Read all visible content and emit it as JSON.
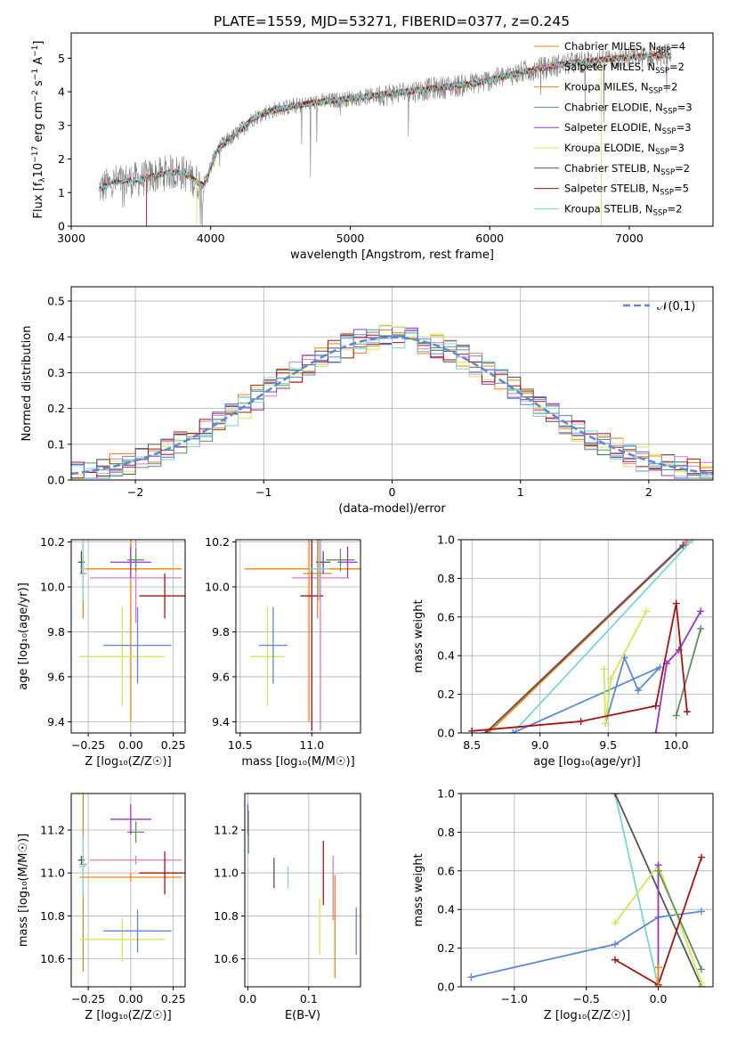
{
  "colors": {
    "chab_miles": "#ff7f00",
    "salp_miles": "#e377c2",
    "krou_miles": "#d68a2c",
    "chab_elodie": "#5f8f5f",
    "salp_elodie": "#9933cc",
    "krou_elodie": "#d9e54f",
    "chab_stelib": "#555555",
    "salp_stelib": "#aa1111",
    "krou_stelib": "#77d7d7",
    "data": "#808080",
    "blue": "#5b8ad8",
    "normal": "#5b8ad8"
  },
  "chart_data": [
    {
      "id": "spectrum",
      "type": "line",
      "title": "PLATE=1559, MJD=53271, FIBERID=0377, z=0.245",
      "xlabel": "wavelength [Angstrom, rest frame]",
      "ylabel_parts": [
        "Flux [f",
        "λ",
        "10",
        "−17",
        " erg cm",
        "−2",
        " s",
        "−1",
        " A",
        "−1",
        "]"
      ],
      "xlim": [
        3000,
        7600
      ],
      "ylim": [
        0,
        5.75
      ],
      "xticks": [
        "3000",
        "4000",
        "5000",
        "6000",
        "7000"
      ],
      "yticks": [
        "0",
        "1",
        "2",
        "3",
        "4",
        "5"
      ],
      "legend_loc": "upper right",
      "legend": [
        {
          "text": "Chabrier MILES, N",
          "sub": "SSP",
          "tail": "=4",
          "color": "chab_miles"
        },
        {
          "text": "Salpeter MILES, N",
          "sub": "SSP",
          "tail": "=2",
          "color": "salp_miles"
        },
        {
          "text": "Kroupa MILES, N",
          "sub": "SSP",
          "tail": "=2",
          "color": "krou_miles"
        },
        {
          "text": "Chabrier ELODIE, N",
          "sub": "SSP",
          "tail": "=3",
          "color": "chab_elodie"
        },
        {
          "text": "Salpeter ELODIE, N",
          "sub": "SSP",
          "tail": "=3",
          "color": "salp_elodie"
        },
        {
          "text": "Kroupa ELODIE, N",
          "sub": "SSP",
          "tail": "=3",
          "color": "krou_elodie"
        },
        {
          "text": "Chabrier STELIB, N",
          "sub": "SSP",
          "tail": "=2",
          "color": "chab_stelib"
        },
        {
          "text": "Salpeter STELIB, N",
          "sub": "SSP",
          "tail": "=5",
          "color": "salp_stelib"
        },
        {
          "text": "Kroupa STELIB, N",
          "sub": "SSP",
          "tail": "=2",
          "color": "krou_stelib"
        }
      ],
      "continuum": [
        [
          3200,
          1.1
        ],
        [
          3300,
          1.3
        ],
        [
          3500,
          1.4
        ],
        [
          3700,
          1.6
        ],
        [
          3800,
          1.6
        ],
        [
          3950,
          1.2
        ],
        [
          4050,
          2.3
        ],
        [
          4200,
          2.8
        ],
        [
          4300,
          3.2
        ],
        [
          4400,
          3.4
        ],
        [
          4500,
          3.5
        ],
        [
          4700,
          3.65
        ],
        [
          4900,
          3.75
        ],
        [
          5100,
          3.85
        ],
        [
          5300,
          3.95
        ],
        [
          5500,
          4.05
        ],
        [
          5700,
          4.15
        ],
        [
          5900,
          4.25
        ],
        [
          6100,
          4.45
        ],
        [
          6300,
          4.65
        ],
        [
          6500,
          4.8
        ],
        [
          6700,
          4.9
        ],
        [
          6900,
          5.0
        ],
        [
          7100,
          5.05
        ],
        [
          7300,
          5.1
        ]
      ]
    },
    {
      "id": "residuals",
      "type": "histogram",
      "xlabel": "(data-model)/error",
      "ylabel": "Normed distribution",
      "xlim": [
        -2.5,
        2.5
      ],
      "ylim": [
        0,
        0.54
      ],
      "xticks": [
        "−2",
        "−1",
        "0",
        "1",
        "2"
      ],
      "yticks": [
        "0.0",
        "0.1",
        "0.2",
        "0.3",
        "0.4",
        "0.5"
      ],
      "legend": "𝒩(0,1)",
      "bin_width": 0.1
    },
    {
      "id": "age_vs_Z",
      "type": "errorbar",
      "xlabel": "Z [log₁₀(Z/Z☉)]",
      "ylabel": "age [log₁₀(age/yr)]",
      "xlim": [
        -0.35,
        0.32
      ],
      "ylim": [
        9.35,
        10.21
      ],
      "xticks": [
        "−0.25",
        "0.00",
        "0.25"
      ],
      "xtick_values": [
        -0.25,
        0,
        0.25
      ],
      "yticks": [
        "9.4",
        "9.6",
        "9.8",
        "10.0",
        "10.2"
      ],
      "ytick_values": [
        9.4,
        9.6,
        9.8,
        10.0,
        10.2
      ],
      "points": [
        {
          "c": "chab_miles",
          "x": 0.0,
          "xe": 0.3,
          "y": 10.08,
          "ye": 0.68
        },
        {
          "c": "salp_miles",
          "x": 0.03,
          "xe": 0.27,
          "y": 10.04,
          "ye": 0.2
        },
        {
          "c": "krou_miles",
          "x": -0.28,
          "xe": 0.02,
          "y": 10.06,
          "ye": 0.2
        },
        {
          "c": "chab_elodie",
          "x": 0.03,
          "xe": 0.05,
          "y": 10.12,
          "ye": 0.05
        },
        {
          "c": "salp_elodie",
          "x": 0.0,
          "xe": 0.12,
          "y": 10.11,
          "ye": 0.07
        },
        {
          "c": "krou_elodie",
          "x": -0.05,
          "xe": 0.25,
          "y": 9.69,
          "ye": 0.22
        },
        {
          "c": "chab_stelib",
          "x": -0.29,
          "xe": 0.02,
          "y": 10.11,
          "ye": 0.05
        },
        {
          "c": "salp_stelib",
          "x": 0.2,
          "xe": 0.15,
          "y": 9.96,
          "ye": 0.1
        },
        {
          "c": "krou_stelib",
          "x": -0.28,
          "xe": 0.02,
          "y": 10.08,
          "ye": 0.14
        },
        {
          "c": "blue",
          "x": 0.04,
          "xe": 0.2,
          "y": 9.74,
          "ye": 0.17
        }
      ]
    },
    {
      "id": "age_vs_mass",
      "type": "errorbar",
      "xlabel": "mass [log₁₀(M/M☉)]",
      "xlim": [
        10.47,
        11.34
      ],
      "ylim": [
        9.35,
        10.21
      ],
      "xticks": [
        "10.5",
        "11.0"
      ],
      "xtick_values": [
        10.5,
        11.0
      ],
      "yticks": [
        "9.4",
        "9.6",
        "9.8",
        "10.0",
        "10.2"
      ],
      "ytick_values": [
        9.4,
        9.6,
        9.8,
        10.0,
        10.2
      ],
      "points": [
        {
          "c": "chab_miles",
          "x": 10.98,
          "xe": 0.45,
          "y": 10.08,
          "ye": 0.68
        },
        {
          "c": "salp_miles",
          "x": 11.06,
          "xe": 0.2,
          "y": 10.04,
          "ye": 0.68
        },
        {
          "c": "krou_miles",
          "x": 11.04,
          "xe": 0.1,
          "y": 10.06,
          "ye": 0.2
        },
        {
          "c": "chab_elodie",
          "x": 11.2,
          "xe": 0.1,
          "y": 10.12,
          "ye": 0.05
        },
        {
          "c": "salp_elodie",
          "x": 11.25,
          "xe": 0.07,
          "y": 10.11,
          "ye": 0.07
        },
        {
          "c": "krou_elodie",
          "x": 10.69,
          "xe": 0.12,
          "y": 9.69,
          "ye": 0.22
        },
        {
          "c": "chab_stelib",
          "x": 11.08,
          "xe": 0.05,
          "y": 10.11,
          "ye": 0.05
        },
        {
          "c": "salp_stelib",
          "x": 11.0,
          "xe": 0.08,
          "y": 9.96,
          "ye": 0.6
        },
        {
          "c": "krou_stelib",
          "x": 11.05,
          "xe": 0.07,
          "y": 10.08,
          "ye": 0.14
        },
        {
          "c": "blue",
          "x": 10.73,
          "xe": 0.1,
          "y": 9.74,
          "ye": 0.17
        }
      ]
    },
    {
      "id": "weight_vs_age",
      "type": "line",
      "xlabel": "age [log₁₀(age/yr)]",
      "ylabel": "mass weight",
      "xlim": [
        8.42,
        10.27
      ],
      "ylim": [
        0,
        1
      ],
      "xticks": [
        "8.5",
        "9.0",
        "9.5",
        "10.0"
      ],
      "xtick_values": [
        8.5,
        9.0,
        9.5,
        10.0
      ],
      "yticks": [
        "0.0",
        "0.2",
        "0.4",
        "0.6",
        "0.8",
        "1.0"
      ],
      "ytick_values": [
        0,
        0.2,
        0.4,
        0.6,
        0.8,
        1.0
      ],
      "series": [
        {
          "c": "chab_miles",
          "points": [
            [
              8.62,
              0
            ],
            [
              10.08,
              0.99
            ]
          ]
        },
        {
          "c": "salp_miles",
          "points": [
            [
              8.6,
              0
            ],
            [
              10.07,
              0.99
            ]
          ]
        },
        {
          "c": "chab_stelib",
          "points": [
            [
              8.6,
              0
            ],
            [
              10.05,
              0.97
            ]
          ]
        },
        {
          "c": "krou_stelib",
          "points": [
            [
              8.8,
              0
            ],
            [
              10.12,
              1.0
            ]
          ]
        },
        {
          "c": "blue",
          "points": [
            [
              8.8,
              0
            ],
            [
              9.88,
              0.34
            ],
            [
              9.72,
              0.22
            ],
            [
              9.62,
              0.39
            ],
            [
              9.48,
              0.05
            ]
          ]
        },
        {
          "c": "krou_elodie",
          "points": [
            [
              9.47,
              0.33
            ],
            [
              9.48,
              0.05
            ],
            [
              9.52,
              0.28
            ],
            [
              9.78,
              0.63
            ]
          ]
        },
        {
          "c": "salp_elodie",
          "points": [
            [
              9.85,
              0.0
            ],
            [
              9.93,
              0.36
            ],
            [
              10.02,
              0.43
            ],
            [
              10.18,
              0.63
            ]
          ]
        },
        {
          "c": "chab_elodie",
          "points": [
            [
              10.0,
              0.09
            ],
            [
              10.18,
              0.54
            ]
          ]
        },
        {
          "c": "salp_stelib",
          "points": [
            [
              8.5,
              0.01
            ],
            [
              9.3,
              0.06
            ],
            [
              9.85,
              0.14
            ],
            [
              10.0,
              0.67
            ],
            [
              10.08,
              0.11
            ]
          ]
        }
      ]
    },
    {
      "id": "mass_vs_Z",
      "type": "errorbar",
      "xlabel": "Z [log₁₀(Z/Z☉)]",
      "ylabel": "mass [log₁₀(M/M☉)]",
      "xlim": [
        -0.35,
        0.32
      ],
      "ylim": [
        10.47,
        11.37
      ],
      "xticks": [
        "−0.25",
        "0.00",
        "0.25"
      ],
      "xtick_values": [
        -0.25,
        0,
        0.25
      ],
      "yticks": [
        "10.6",
        "10.8",
        "11.0",
        "11.2"
      ],
      "ytick_values": [
        10.6,
        10.8,
        11.0,
        11.2
      ],
      "points": [
        {
          "c": "chab_miles",
          "x": 0.0,
          "xe": 0.3,
          "y": 10.98,
          "ye": 0.02
        },
        {
          "c": "salp_miles",
          "x": 0.03,
          "xe": 0.27,
          "y": 11.06,
          "ye": 0.02
        },
        {
          "c": "krou_miles",
          "x": -0.28,
          "xe": 0.02,
          "y": 11.04,
          "ye": 0.5
        },
        {
          "c": "chab_elodie",
          "x": 0.03,
          "xe": 0.05,
          "y": 11.19,
          "ye": 0.05
        },
        {
          "c": "salp_elodie",
          "x": 0.0,
          "xe": 0.12,
          "y": 11.25,
          "ye": 0.07
        },
        {
          "c": "krou_elodie",
          "x": -0.05,
          "xe": 0.25,
          "y": 10.69,
          "ye": 0.1
        },
        {
          "c": "chab_stelib",
          "x": -0.29,
          "xe": 0.02,
          "y": 11.06,
          "ye": 0.02
        },
        {
          "c": "salp_stelib",
          "x": 0.2,
          "xe": 0.15,
          "y": 11.0,
          "ye": 0.1
        },
        {
          "c": "krou_stelib",
          "x": -0.28,
          "xe": 0.02,
          "y": 11.03,
          "ye": 0.14
        },
        {
          "c": "blue",
          "x": 0.04,
          "xe": 0.2,
          "y": 10.73,
          "ye": 0.1
        }
      ]
    },
    {
      "id": "mass_vs_ebv",
      "type": "errorbar",
      "xlabel": "E(B-V)",
      "xlim": [
        -0.005,
        0.185
      ],
      "ylim": [
        10.47,
        11.37
      ],
      "xticks": [
        "0.0",
        "0.1"
      ],
      "xtick_values": [
        0,
        0.1
      ],
      "yticks": [
        "10.6",
        "10.8",
        "11.0",
        "11.2"
      ],
      "ytick_values": [
        10.6,
        10.8,
        11.0,
        11.2
      ],
      "points": [
        {
          "c": "salp_elodie",
          "x": 0.0,
          "xe": 0,
          "y": 11.25,
          "ye": 0.07
        },
        {
          "c": "chab_elodie",
          "x": 0.001,
          "xe": 0,
          "y": 11.19,
          "ye": 0.1
        },
        {
          "c": "chab_stelib",
          "x": 0.043,
          "xe": 0,
          "y": 11.0,
          "ye": 0.07
        },
        {
          "c": "krou_stelib",
          "x": 0.066,
          "xe": 0,
          "y": 10.98,
          "ye": 0.05
        },
        {
          "c": "krou_elodie",
          "x": 0.118,
          "xe": 0,
          "y": 10.75,
          "ye": 0.13
        },
        {
          "c": "salp_stelib",
          "x": 0.124,
          "xe": 0,
          "y": 11.0,
          "ye": 0.15
        },
        {
          "c": "salp_miles",
          "x": 0.14,
          "xe": 0,
          "y": 10.93,
          "ye": 0.15
        },
        {
          "c": "chab_miles",
          "x": 0.143,
          "xe": 0,
          "y": 10.75,
          "ye": 0.24
        },
        {
          "c": "blue",
          "x": 0.178,
          "xe": 0,
          "y": 10.73,
          "ye": 0.11
        }
      ]
    },
    {
      "id": "weight_vs_Z",
      "type": "line",
      "xlabel": "Z [log₁₀(Z/Z☉)]",
      "ylabel": "mass weight",
      "xlim": [
        -1.37,
        0.38
      ],
      "ylim": [
        0,
        1
      ],
      "xticks": [
        "−1.0",
        "−0.5",
        "0.0"
      ],
      "xtick_values": [
        -1.0,
        -0.5,
        0.0
      ],
      "yticks": [
        "0.0",
        "0.2",
        "0.4",
        "0.6",
        "0.8",
        "1.0"
      ],
      "ytick_values": [
        0,
        0.2,
        0.4,
        0.6,
        0.8,
        1.0
      ],
      "series": [
        {
          "c": "krou_stelib",
          "points": [
            [
              -0.3,
              1.0
            ],
            [
              -0.3,
              1.0
            ],
            [
              0.0,
              0.0
            ]
          ]
        },
        {
          "c": "chab_stelib",
          "points": [
            [
              -0.3,
              1.0
            ],
            [
              0.3,
              0.0
            ]
          ]
        },
        {
          "c": "blue",
          "points": [
            [
              -1.3,
              0.05
            ],
            [
              -0.3,
              0.22
            ],
            [
              0.0,
              0.36
            ],
            [
              0.3,
              0.39
            ]
          ]
        },
        {
          "c": "krou_elodie",
          "points": [
            [
              -0.3,
              0.33
            ],
            [
              0.0,
              0.63
            ],
            [
              0.3,
              0.02
            ]
          ]
        },
        {
          "c": "salp_elodie",
          "points": [
            [
              0.0,
              0.63
            ],
            [
              0.0,
              0.0
            ]
          ]
        },
        {
          "c": "chab_elodie",
          "points": [
            [
              0.0,
              0.6
            ],
            [
              0.3,
              0.09
            ]
          ]
        },
        {
          "c": "salp_stelib",
          "points": [
            [
              -0.3,
              0.14
            ],
            [
              0.0,
              0.01
            ],
            [
              0.3,
              0.67
            ]
          ]
        },
        {
          "c": "chab_miles",
          "points": [
            [
              0.0,
              0.1
            ],
            [
              0.0,
              0.0
            ]
          ]
        }
      ]
    }
  ]
}
